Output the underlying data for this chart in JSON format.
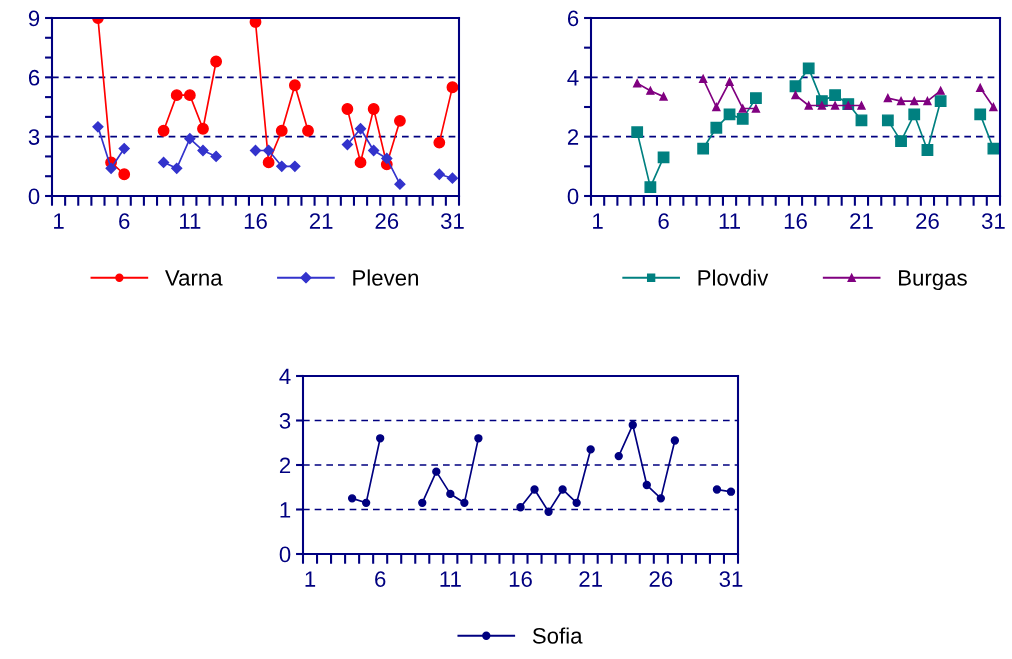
{
  "chart_data": [
    {
      "type": "line",
      "categories": [
        "1",
        null,
        null,
        null,
        null,
        "6",
        null,
        null,
        null,
        null,
        "11",
        null,
        null,
        null,
        null,
        "16",
        null,
        null,
        null,
        null,
        "21",
        null,
        null,
        null,
        null,
        "26",
        null,
        null,
        null,
        null,
        "31"
      ],
      "series": [
        {
          "name": "Varna",
          "color": "#ff0000",
          "marker": "circle",
          "values": [
            null,
            null,
            null,
            9,
            1.7,
            1.1,
            null,
            null,
            3.3,
            5.1,
            5.1,
            3.4,
            6.8,
            null,
            null,
            8.8,
            1.7,
            3.3,
            5.6,
            3.3,
            null,
            null,
            4.4,
            1.7,
            4.4,
            1.6,
            3.8,
            null,
            null,
            2.7,
            5.5
          ]
        },
        {
          "name": "Pleven",
          "color": "#3333cc",
          "marker": "diamond",
          "values": [
            null,
            null,
            null,
            3.5,
            1.4,
            2.4,
            null,
            null,
            1.7,
            1.4,
            2.9,
            2.3,
            2.0,
            null,
            null,
            2.3,
            2.3,
            1.5,
            1.5,
            null,
            null,
            null,
            2.6,
            3.4,
            2.3,
            1.9,
            0.6,
            null,
            null,
            1.1,
            0.9
          ]
        }
      ],
      "ylim": [
        0,
        9
      ],
      "yticks": [
        0,
        {
          "value": 1,
          "label": null
        },
        {
          "value": 2,
          "label": null
        },
        3,
        {
          "value": 4,
          "label": null
        },
        {
          "value": 5,
          "label": null
        },
        6,
        {
          "value": 7,
          "label": null
        },
        {
          "value": 8,
          "label": null
        },
        9
      ],
      "grid": "y",
      "legend": "bottom",
      "line_style": "solid"
    },
    {
      "type": "line",
      "categories": [
        "1",
        null,
        null,
        null,
        null,
        "6",
        null,
        null,
        null,
        null,
        "11",
        null,
        null,
        null,
        null,
        "16",
        null,
        null,
        null,
        null,
        "21",
        null,
        null,
        null,
        null,
        "26",
        null,
        null,
        null,
        null,
        "31"
      ],
      "series": [
        {
          "name": "Plovdiv",
          "color": "#008080",
          "marker": "square",
          "values": [
            null,
            null,
            null,
            2.15,
            0.3,
            1.3,
            null,
            null,
            1.6,
            2.3,
            2.75,
            2.6,
            3.3,
            null,
            null,
            3.7,
            4.3,
            3.2,
            3.4,
            3.1,
            2.55,
            null,
            2.55,
            1.85,
            2.75,
            1.55,
            3.2,
            null,
            null,
            2.75,
            1.6
          ]
        },
        {
          "name": "Burgas",
          "color": "#800080",
          "marker": "triangle",
          "values": [
            null,
            null,
            null,
            3.8,
            3.55,
            3.35,
            null,
            null,
            3.95,
            3.0,
            3.85,
            2.95,
            2.95,
            null,
            null,
            3.4,
            3.05,
            3.05,
            3.05,
            3.05,
            3.05,
            null,
            3.3,
            3.2,
            3.2,
            3.2,
            3.55,
            null,
            null,
            3.65,
            3.0
          ]
        }
      ],
      "ylim": [
        0,
        6
      ],
      "yticks": [
        0,
        {
          "value": 1,
          "label": null
        },
        2,
        {
          "value": 3,
          "label": null
        },
        4,
        {
          "value": 5,
          "label": null
        },
        6
      ],
      "grid": "y",
      "legend": "bottom",
      "line_style": "solid"
    },
    {
      "type": "line",
      "categories": [
        "1",
        null,
        null,
        null,
        null,
        "6",
        null,
        null,
        null,
        null,
        "11",
        null,
        null,
        null,
        null,
        "16",
        null,
        null,
        null,
        null,
        "21",
        null,
        null,
        null,
        null,
        "26",
        null,
        null,
        null,
        null,
        "31"
      ],
      "series": [
        {
          "name": "Sofia",
          "color": "#000080",
          "marker": "circle",
          "values": [
            null,
            null,
            null,
            1.25,
            1.15,
            2.6,
            null,
            null,
            1.15,
            1.85,
            1.35,
            1.15,
            2.6,
            null,
            null,
            1.05,
            1.45,
            0.95,
            1.45,
            1.15,
            2.35,
            null,
            2.2,
            2.9,
            1.55,
            1.25,
            2.55,
            null,
            null,
            1.45,
            1.4
          ]
        }
      ],
      "ylim": [
        0,
        4
      ],
      "yticks": [
        0,
        1,
        2,
        3,
        4
      ],
      "grid": "y",
      "legend": "bottom",
      "line_style": "solid"
    }
  ]
}
